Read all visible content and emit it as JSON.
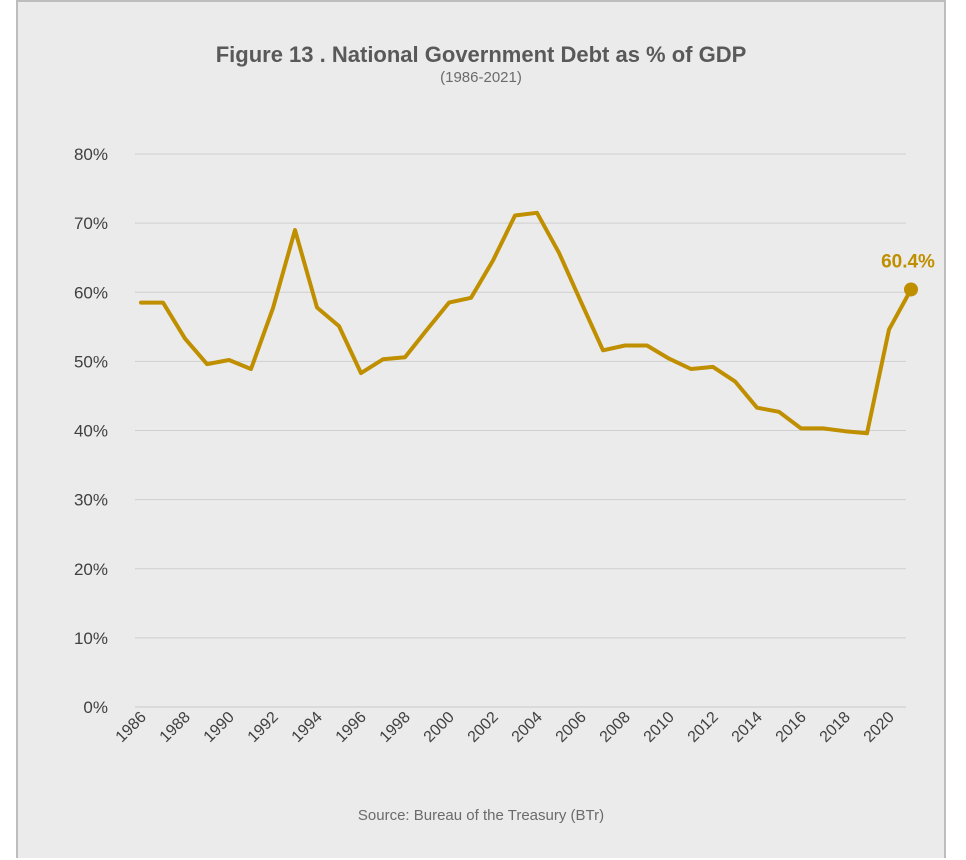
{
  "chart_data": {
    "type": "line",
    "title": "Figure 13 . National Government Debt as % of GDP",
    "subtitle": "(1986-2021)",
    "source": "Source: Bureau of the Treasury (BTr)",
    "x": [
      1986,
      1987,
      1988,
      1989,
      1990,
      1991,
      1992,
      1993,
      1994,
      1995,
      1996,
      1997,
      1998,
      1999,
      2000,
      2001,
      2002,
      2003,
      2004,
      2005,
      2006,
      2007,
      2008,
      2009,
      2010,
      2011,
      2012,
      2013,
      2014,
      2015,
      2016,
      2017,
      2018,
      2019,
      2020,
      2021
    ],
    "x_tick_labels": [
      "1986",
      "1988",
      "1990",
      "1992",
      "1994",
      "1996",
      "1998",
      "2000",
      "2002",
      "2004",
      "2006",
      "2008",
      "2010",
      "2012",
      "2014",
      "2016",
      "2018",
      "2020"
    ],
    "series": [
      {
        "values": [
          58.5,
          58.5,
          53.3,
          49.6,
          50.2,
          48.9,
          57.7,
          69.0,
          57.8,
          55.1,
          48.3,
          50.3,
          50.6,
          54.6,
          58.5,
          59.2,
          64.6,
          71.1,
          71.5,
          65.7,
          58.6,
          51.6,
          52.3,
          52.3,
          50.4,
          48.9,
          49.2,
          47.1,
          43.3,
          42.7,
          40.3,
          40.3,
          39.9,
          39.6,
          54.6,
          60.4
        ],
        "color": "#bf8f00"
      }
    ],
    "ylim": [
      0,
      80
    ],
    "y_ticks": [
      0,
      10,
      20,
      30,
      40,
      50,
      60,
      70,
      80
    ],
    "y_tick_labels": [
      "0%",
      "10%",
      "20%",
      "30%",
      "40%",
      "50%",
      "60%",
      "70%",
      "80%"
    ],
    "grid": true,
    "annotation": {
      "x": 2021,
      "value": 60.4,
      "label": "60.4%",
      "color": "#bf8f00"
    }
  }
}
